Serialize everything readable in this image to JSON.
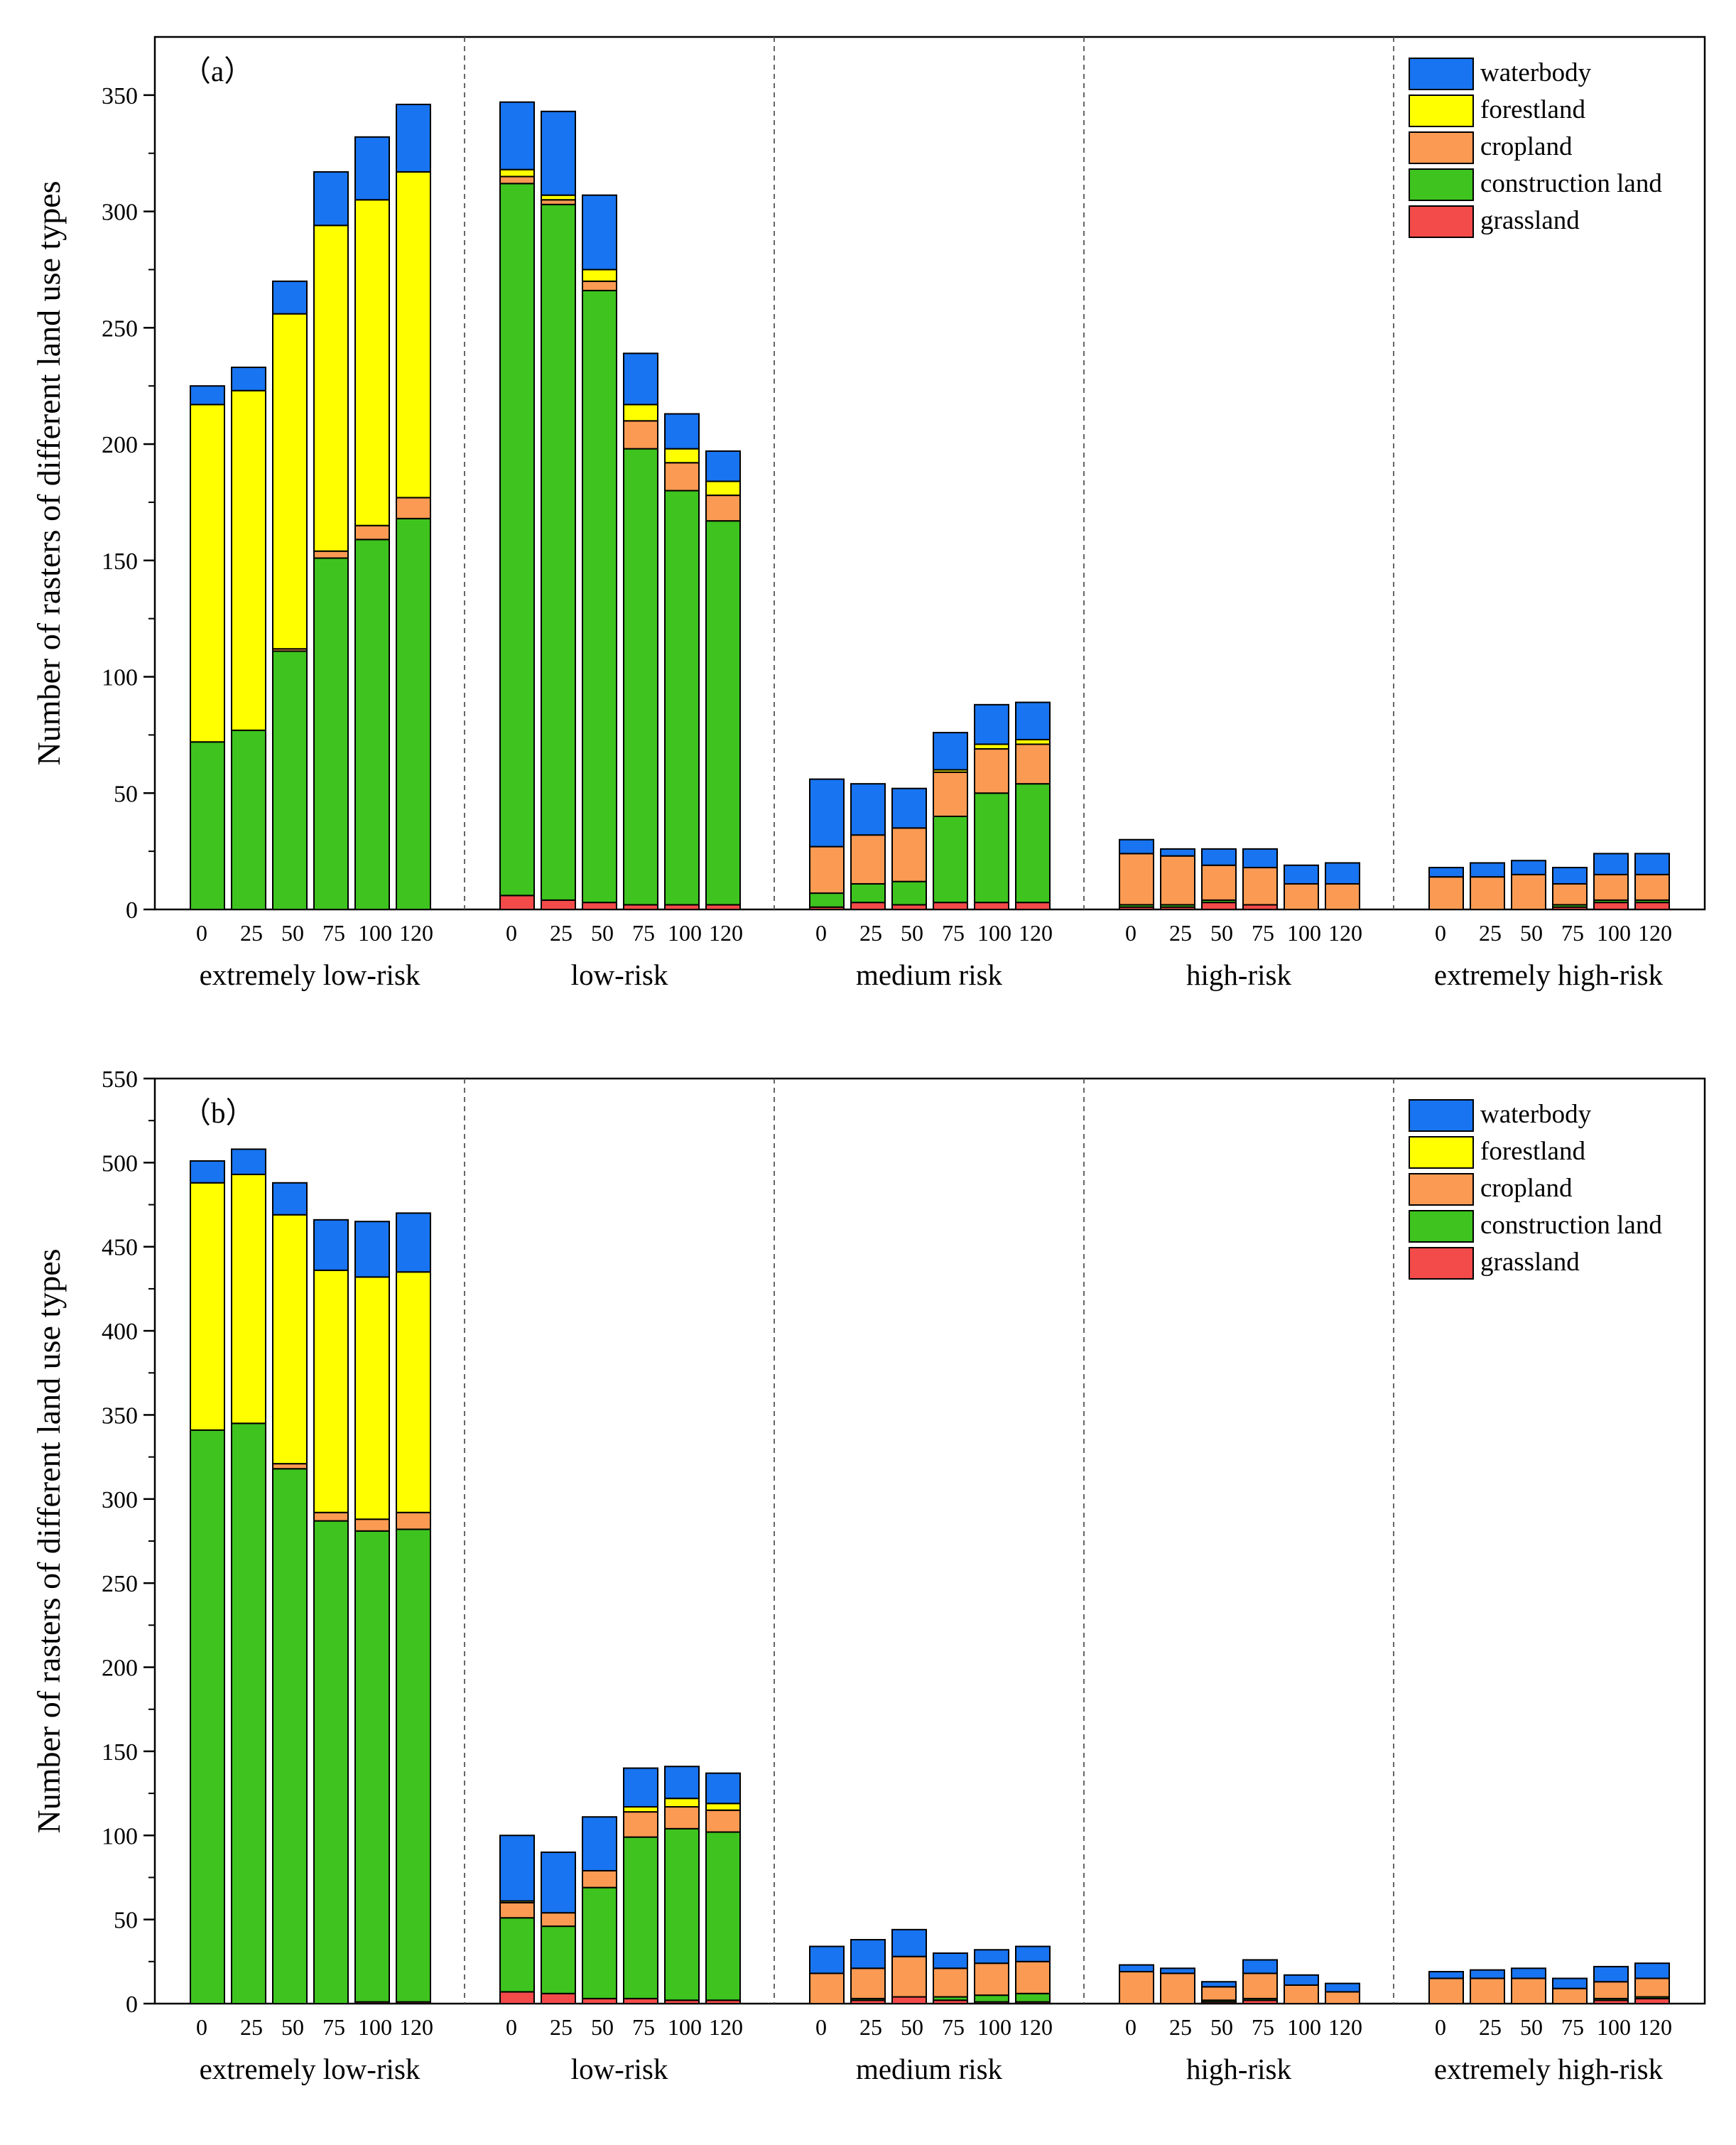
{
  "chart_data": [
    {
      "type": "bar",
      "stacked": true,
      "panel_label": "（a）",
      "ylabel": "Number of rasters of different land use types",
      "ylim": [
        0,
        375
      ],
      "yticks": [
        0,
        50,
        100,
        150,
        200,
        250,
        300,
        350
      ],
      "legend_position": "top-right",
      "groups": [
        "extremely low-risk",
        "low-risk",
        "medium risk",
        "high-risk",
        "extremely high-risk"
      ],
      "categories": [
        "0",
        "25",
        "50",
        "75",
        "100",
        "120"
      ],
      "series_order": [
        "grassland",
        "construction land",
        "cropland",
        "forestland",
        "waterbody"
      ],
      "legend_order": [
        "waterbody",
        "forestland",
        "cropland",
        "construction land",
        "grassland"
      ],
      "colors": {
        "waterbody": "#1874f0",
        "forestland": "#ffff00",
        "cropland": "#fb9a52",
        "construction land": "#3ec31f",
        "grassland": "#f34a4a"
      },
      "data": {
        "extremely low-risk": {
          "grassland": [
            0,
            0,
            0,
            0,
            0,
            0
          ],
          "construction land": [
            72,
            77,
            111,
            151,
            159,
            168
          ],
          "cropland": [
            0,
            0,
            1,
            3,
            6,
            9
          ],
          "forestland": [
            145,
            146,
            144,
            140,
            140,
            140
          ],
          "waterbody": [
            8,
            10,
            14,
            23,
            27,
            29
          ]
        },
        "low-risk": {
          "grassland": [
            6,
            4,
            3,
            2,
            2,
            2
          ],
          "construction land": [
            306,
            299,
            263,
            196,
            178,
            165
          ],
          "cropland": [
            3,
            2,
            4,
            12,
            12,
            11
          ],
          "forestland": [
            3,
            2,
            5,
            7,
            6,
            6
          ],
          "waterbody": [
            29,
            36,
            32,
            22,
            15,
            13
          ]
        },
        "medium risk": {
          "grassland": [
            1,
            3,
            2,
            3,
            3,
            3
          ],
          "construction land": [
            6,
            8,
            10,
            37,
            47,
            51
          ],
          "cropland": [
            20,
            21,
            23,
            19,
            19,
            17
          ],
          "forestland": [
            0,
            0,
            0,
            1,
            2,
            2
          ],
          "waterbody": [
            29,
            22,
            17,
            16,
            17,
            16
          ]
        },
        "high-risk": {
          "grassland": [
            1,
            1,
            3,
            2,
            0,
            0
          ],
          "construction land": [
            1,
            1,
            1,
            0,
            0,
            0
          ],
          "cropland": [
            22,
            21,
            15,
            16,
            11,
            11
          ],
          "forestland": [
            0,
            0,
            0,
            0,
            0,
            0
          ],
          "waterbody": [
            6,
            3,
            7,
            8,
            8,
            9
          ]
        },
        "extremely high-risk": {
          "grassland": [
            0,
            0,
            0,
            1,
            3,
            3
          ],
          "construction land": [
            0,
            0,
            0,
            1,
            1,
            1
          ],
          "cropland": [
            14,
            14,
            15,
            9,
            11,
            11
          ],
          "forestland": [
            0,
            0,
            0,
            0,
            0,
            0
          ],
          "waterbody": [
            4,
            6,
            6,
            7,
            9,
            9
          ]
        }
      }
    },
    {
      "type": "bar",
      "stacked": true,
      "panel_label": "（b）",
      "ylabel": "Number of rasters of different land use types",
      "ylim": [
        0,
        550
      ],
      "yticks": [
        0,
        50,
        100,
        150,
        200,
        250,
        300,
        350,
        400,
        450,
        500,
        550
      ],
      "legend_position": "top-right",
      "groups": [
        "extremely low-risk",
        "low-risk",
        "medium risk",
        "high-risk",
        "extremely high-risk"
      ],
      "categories": [
        "0",
        "25",
        "50",
        "75",
        "100",
        "120"
      ],
      "series_order": [
        "grassland",
        "construction land",
        "cropland",
        "forestland",
        "waterbody"
      ],
      "legend_order": [
        "waterbody",
        "forestland",
        "cropland",
        "construction land",
        "grassland"
      ],
      "colors": {
        "waterbody": "#1874f0",
        "forestland": "#ffff00",
        "cropland": "#fb9a52",
        "construction land": "#3ec31f",
        "grassland": "#f34a4a"
      },
      "data": {
        "extremely low-risk": {
          "grassland": [
            0,
            0,
            0,
            0,
            1,
            1
          ],
          "construction land": [
            341,
            345,
            318,
            287,
            280,
            281
          ],
          "cropland": [
            0,
            0,
            3,
            5,
            7,
            10
          ],
          "forestland": [
            147,
            148,
            148,
            144,
            144,
            143
          ],
          "waterbody": [
            13,
            15,
            19,
            30,
            33,
            35
          ]
        },
        "low-risk": {
          "grassland": [
            7,
            6,
            3,
            3,
            2,
            2
          ],
          "construction land": [
            44,
            40,
            66,
            96,
            102,
            100
          ],
          "cropland": [
            9,
            8,
            10,
            15,
            13,
            13
          ],
          "forestland": [
            1,
            0,
            0,
            3,
            5,
            4
          ],
          "waterbody": [
            39,
            36,
            32,
            23,
            19,
            18
          ]
        },
        "medium risk": {
          "grassland": [
            0,
            2,
            4,
            2,
            1,
            1
          ],
          "construction land": [
            0,
            1,
            0,
            2,
            4,
            5
          ],
          "cropland": [
            18,
            18,
            24,
            17,
            19,
            19
          ],
          "forestland": [
            0,
            0,
            0,
            0,
            0,
            0
          ],
          "waterbody": [
            16,
            17,
            16,
            9,
            8,
            9
          ]
        },
        "high-risk": {
          "grassland": [
            0,
            0,
            1,
            2,
            0,
            0
          ],
          "construction land": [
            0,
            0,
            1,
            1,
            0,
            0
          ],
          "cropland": [
            19,
            18,
            8,
            15,
            11,
            7
          ],
          "forestland": [
            0,
            0,
            0,
            0,
            0,
            0
          ],
          "waterbody": [
            4,
            3,
            3,
            8,
            6,
            5
          ]
        },
        "extremely high-risk": {
          "grassland": [
            0,
            0,
            0,
            0,
            2,
            3
          ],
          "construction land": [
            0,
            0,
            0,
            0,
            1,
            1
          ],
          "cropland": [
            15,
            15,
            15,
            9,
            10,
            11
          ],
          "forestland": [
            0,
            0,
            0,
            0,
            0,
            0
          ],
          "waterbody": [
            4,
            5,
            6,
            6,
            9,
            9
          ]
        }
      }
    }
  ]
}
